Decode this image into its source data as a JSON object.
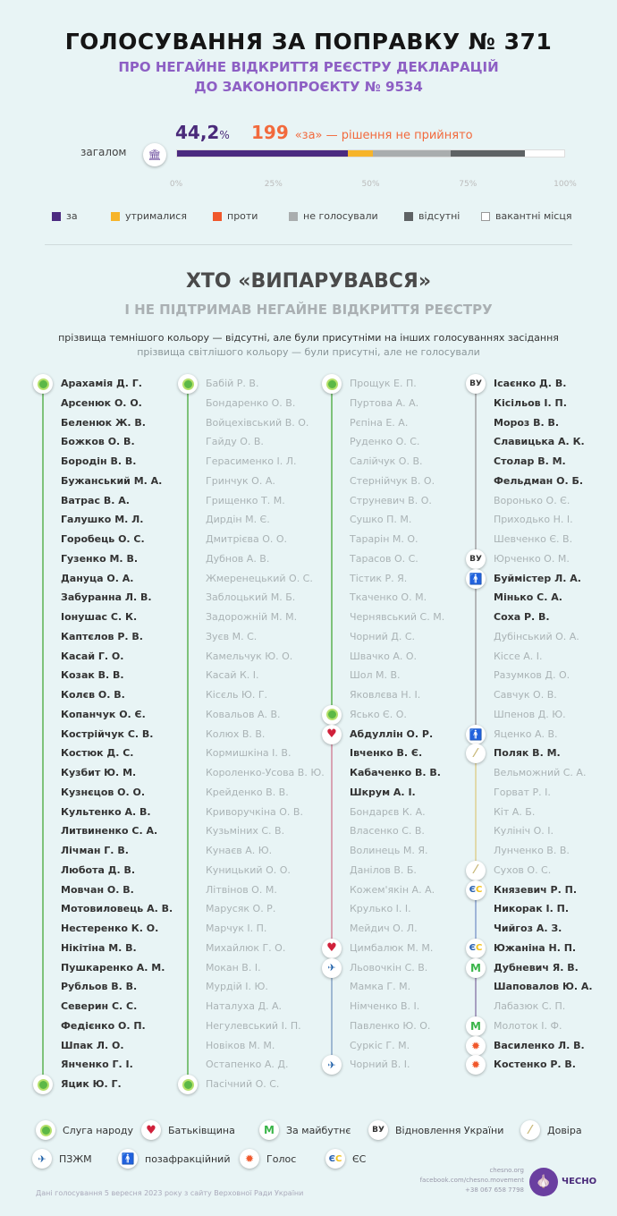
{
  "header": {
    "title": "ГОЛОСУВАННЯ ЗА ПОПРАВКУ № 371",
    "subtitle_line1": "ПРО НЕГАЙНЕ ВІДКРИТТЯ РЕЄСТРУ ДЕКЛАРАЦІЙ",
    "subtitle_line2": "ДО ЗАКОНОПРОЄКТУ № 9534"
  },
  "summary": {
    "percent": "44,2",
    "percent_sign": "%",
    "count": "199",
    "result": "«за» — рішення не прийнято",
    "overall_label": "загалом"
  },
  "chart_data": {
    "type": "bar",
    "stacked": true,
    "orientation": "horizontal",
    "categories": [
      "загалом"
    ],
    "xlim": [
      0,
      100
    ],
    "x_ticks": [
      "0%",
      "25%",
      "50%",
      "75%",
      "100%"
    ],
    "series": [
      {
        "name": "за",
        "values": [
          44.2
        ],
        "color": "#4b2a80"
      },
      {
        "name": "утрималися",
        "values": [
          6.4
        ],
        "color": "#f6b42a"
      },
      {
        "name": "проти",
        "values": [
          0
        ],
        "color": "#f0582c"
      },
      {
        "name": "не голосували",
        "values": [
          20
        ],
        "color": "#a9adae"
      },
      {
        "name": "відсутні",
        "values": [
          19.3
        ],
        "color": "#5e6264"
      },
      {
        "name": "вакантні місця",
        "values": [
          10.1
        ],
        "color": "#ffffff"
      }
    ]
  },
  "section": {
    "title": "ХТО «ВИПАРУВАВСЯ»",
    "subtitle": "І НЕ ПІДТРИМАВ НЕГАЙНЕ ВІДКРИТТЯ РЕЄСТРУ",
    "note_dark": "прізвища темнішого кольору — відсутні, але були присутніми на інших голосуваннях засідання",
    "note_light": "прізвища світлішого кольору — були присутні, але не голосували"
  },
  "parties": {
    "sn": {
      "name": "Слуга народу",
      "color": "#7ec27a",
      "icon": "sluha-narodu-icon"
    },
    "bat": {
      "name": "Батьківщина",
      "color": "#d8a3b3",
      "icon": "heart-icon"
    },
    "zm": {
      "name": "За майбутнє",
      "color": "#a79fc0",
      "icon": "za-maibutne-icon"
    },
    "vu": {
      "name": "Відновлення України",
      "color": "#b3b6b8",
      "icon": "vu-icon"
    },
    "dov": {
      "name": "Довіра",
      "color": "#e1d9ab",
      "icon": "dovira-icon"
    },
    "pzzm": {
      "name": "ПЗЖМ",
      "color": "#9fb8d2",
      "icon": "pzzm-icon"
    },
    "poza": {
      "name": "позафракційний",
      "color": "#b3b6b8",
      "icon": "person-icon"
    },
    "golos": {
      "name": "Голос",
      "color": "#f3a183",
      "icon": "golos-icon"
    },
    "es": {
      "name": "ЄС",
      "color": "#9fb5d8",
      "icon": "es-icon"
    }
  },
  "columns": [
    [
      {
        "party": "sn",
        "members": [
          [
            "Арахамія Д. Г.",
            1
          ],
          [
            "Арсенюк О. О.",
            1
          ],
          [
            "Беленюк Ж. В.",
            1
          ],
          [
            "Божков О. В.",
            1
          ],
          [
            "Бородін В. В.",
            1
          ],
          [
            "Бужанський М. А.",
            1
          ],
          [
            "Ватрас В. А.",
            1
          ],
          [
            "Галушко М. Л.",
            1
          ],
          [
            "Горобець О. С.",
            1
          ],
          [
            "Гузенко М. В.",
            1
          ],
          [
            "Дануца О. А.",
            1
          ],
          [
            "Забуранна Л. В.",
            1
          ],
          [
            "Іонушас С. К.",
            1
          ],
          [
            "Каптєлов Р. В.",
            1
          ],
          [
            "Касай Г. О.",
            1
          ],
          [
            "Козак В. В.",
            1
          ],
          [
            "Колєв О. В.",
            1
          ],
          [
            "Копанчук О. Є.",
            1
          ],
          [
            "Кострійчук С. В.",
            1
          ],
          [
            "Костюк Д. С.",
            1
          ],
          [
            "Кузбит Ю. М.",
            1
          ],
          [
            "Кузнєцов О. О.",
            1
          ],
          [
            "Культенко А. В.",
            1
          ],
          [
            "Литвиненко С. А.",
            1
          ],
          [
            "Лічман Г. В.",
            1
          ],
          [
            "Любота Д. В.",
            1
          ],
          [
            "Мовчан О. В.",
            1
          ],
          [
            "Мотовиловець А. В.",
            1
          ],
          [
            "Нестеренко К. О.",
            1
          ],
          [
            "Нікітіна М. В.",
            1
          ],
          [
            "Пушкаренко А. М.",
            1
          ],
          [
            "Рубльов В. В.",
            1
          ],
          [
            "Северин С. С.",
            1
          ],
          [
            "Федієнко О. П.",
            1
          ],
          [
            "Шпак Л. О.",
            1
          ],
          [
            "Янченко Г. І.",
            1
          ],
          [
            "Яцик Ю. Г.",
            1
          ]
        ]
      }
    ],
    [
      {
        "party": "sn",
        "members": [
          [
            "Бабій Р. В.",
            0
          ],
          [
            "Бондаренко О. В.",
            0
          ],
          [
            "Войцехівський В. О.",
            0
          ],
          [
            "Гайду О. В.",
            0
          ],
          [
            "Герасименко І. Л.",
            0
          ],
          [
            "Гринчук О. А.",
            0
          ],
          [
            "Грищенко Т. М.",
            0
          ],
          [
            "Дирдін М. Є.",
            0
          ],
          [
            "Дмитрієва О. О.",
            0
          ],
          [
            "Дубнов А. В.",
            0
          ],
          [
            "Жмеренецький О. С.",
            0
          ],
          [
            "Заблоцький М. Б.",
            0
          ],
          [
            "Задорожній М. М.",
            0
          ],
          [
            "Зуєв М. С.",
            0
          ],
          [
            "Камельчук Ю. О.",
            0
          ],
          [
            "Касай К. І.",
            0
          ],
          [
            "Кісєль Ю. Г.",
            0
          ],
          [
            "Ковальов А. В.",
            0
          ],
          [
            "Колюх В. В.",
            0
          ],
          [
            "Кормишкіна І. В.",
            0
          ],
          [
            "Короленко-Усова В. Ю.",
            0
          ],
          [
            "Крейденко В. В.",
            0
          ],
          [
            "Криворучкіна О. В.",
            0
          ],
          [
            "Кузьміних С. В.",
            0
          ],
          [
            "Кунаєв А. Ю.",
            0
          ],
          [
            "Куницький О. О.",
            0
          ],
          [
            "Літвінов О. М.",
            0
          ],
          [
            "Марусяк О. Р.",
            0
          ],
          [
            "Марчук І. П.",
            0
          ],
          [
            "Михайлюк Г. О.",
            0
          ],
          [
            "Мокан В. І.",
            0
          ],
          [
            "Мурдій І. Ю.",
            0
          ],
          [
            "Наталуха Д. А.",
            0
          ],
          [
            "Негулевський І. П.",
            0
          ],
          [
            "Новіков М. М.",
            0
          ],
          [
            "Остапенко А. Д.",
            0
          ],
          [
            "Пасічний О. С.",
            0
          ]
        ]
      }
    ],
    [
      {
        "party": "sn",
        "members": [
          [
            "Прощук Е. П.",
            0
          ],
          [
            "Пуртова А. А.",
            0
          ],
          [
            "Рєпіна Е. А.",
            0
          ],
          [
            "Руденко О. С.",
            0
          ],
          [
            "Салійчук О. В.",
            0
          ],
          [
            "Стернійчук В. О.",
            0
          ],
          [
            "Струневич В. О.",
            0
          ],
          [
            "Сушко П. М.",
            0
          ],
          [
            "Тарарін М. О.",
            0
          ],
          [
            "Тарасов О. С.",
            0
          ],
          [
            "Тістик Р. Я.",
            0
          ],
          [
            "Ткаченко О. М.",
            0
          ],
          [
            "Чернявський С. М.",
            0
          ],
          [
            "Чорний Д. С.",
            0
          ],
          [
            "Швачко А. О.",
            0
          ],
          [
            "Шол М. В.",
            0
          ],
          [
            "Яковлєва Н. І.",
            0
          ],
          [
            "Ясько Є. О.",
            0
          ]
        ]
      },
      {
        "party": "bat",
        "members": [
          [
            "Абдуллін О. Р.",
            1
          ],
          [
            "Івченко В. Є.",
            1
          ],
          [
            "Кабаченко В. В.",
            1
          ],
          [
            "Шкрум А. І.",
            1
          ],
          [
            "Бондарєв К. А.",
            0
          ],
          [
            "Власенко С. В.",
            0
          ],
          [
            "Волинець М. Я.",
            0
          ],
          [
            "Данілов В. Б.",
            0
          ],
          [
            "Кожем'якін А. А.",
            0
          ],
          [
            "Крулько І. І.",
            0
          ],
          [
            "Мейдич О. Л.",
            0
          ],
          [
            "Цимбалюк М. М.",
            0
          ]
        ]
      },
      {
        "party": "pzzm",
        "members": [
          [
            "Льовочкін С. В.",
            0
          ],
          [
            "Мамка Г. М.",
            0
          ],
          [
            "Німченко В. І.",
            0
          ],
          [
            "Павленко Ю. О.",
            0
          ],
          [
            "Суркіс Г. М.",
            0
          ],
          [
            "Чорний В. І.",
            0
          ]
        ]
      }
    ],
    [
      {
        "party": "vu",
        "members": [
          [
            "Ісаєнко Д. В.",
            1
          ],
          [
            "Кісільов І. П.",
            1
          ],
          [
            "Мороз В. В.",
            1
          ],
          [
            "Славицька А. К.",
            1
          ],
          [
            "Столар В. М.",
            1
          ],
          [
            "Фельдман О. Б.",
            1
          ],
          [
            "Воронько О. Є.",
            0
          ],
          [
            "Приходько Н. І.",
            0
          ],
          [
            "Шевченко Є. В.",
            0
          ],
          [
            "Юрченко О. М.",
            0
          ]
        ]
      },
      {
        "party": "poza",
        "members": [
          [
            "Буймістер Л. А.",
            1
          ],
          [
            "Мінько С. А.",
            1
          ],
          [
            "Соха Р. В.",
            1
          ],
          [
            "Дубінський О. А.",
            0
          ],
          [
            "Кіссе А. І.",
            0
          ],
          [
            "Разумков Д. О.",
            0
          ],
          [
            "Савчук О. В.",
            0
          ],
          [
            "Шпенов Д. Ю.",
            0
          ],
          [
            "Яценко А. В.",
            0
          ]
        ]
      },
      {
        "party": "dov",
        "members": [
          [
            "Поляк В. М.",
            1
          ],
          [
            "Вельможний С. А.",
            0
          ],
          [
            "Горват Р. І.",
            0
          ],
          [
            "Кіт А. Б.",
            0
          ],
          [
            "Кулініч О. І.",
            0
          ],
          [
            "Лунченко В. В.",
            0
          ],
          [
            "Сухов О. С.",
            0
          ]
        ]
      },
      {
        "party": "es",
        "members": [
          [
            "Князевич Р. П.",
            1
          ],
          [
            "Никорак І. П.",
            1
          ],
          [
            "Чийгоз А. З.",
            1
          ],
          [
            "Южаніна Н. П.",
            1
          ]
        ]
      },
      {
        "party": "zm",
        "members": [
          [
            "Дубневич Я. В.",
            1
          ],
          [
            "Шаповалов Ю. А.",
            1
          ],
          [
            "Лабазюк С. П.",
            0
          ],
          [
            "Молоток І. Ф.",
            0
          ]
        ]
      },
      {
        "party": "golos",
        "members": [
          [
            "Василенко Л. В.",
            1
          ]
        ]
      },
      {
        "party": "golos",
        "members": [
          [
            "Костенко Р. В.",
            1
          ]
        ]
      }
    ]
  ],
  "legend_order": [
    "sn",
    "bat",
    "zm",
    "vu",
    "dov",
    "pzzm",
    "poza",
    "golos",
    "es"
  ],
  "footer": {
    "source": "Дані голосування 5 вересня 2023 року з сайту Верховної Ради України",
    "site": "chesno.org",
    "facebook": "facebook.com/chesno.movement",
    "phone": "+38 067 658 7798",
    "logo": "ЧЕСНО"
  }
}
